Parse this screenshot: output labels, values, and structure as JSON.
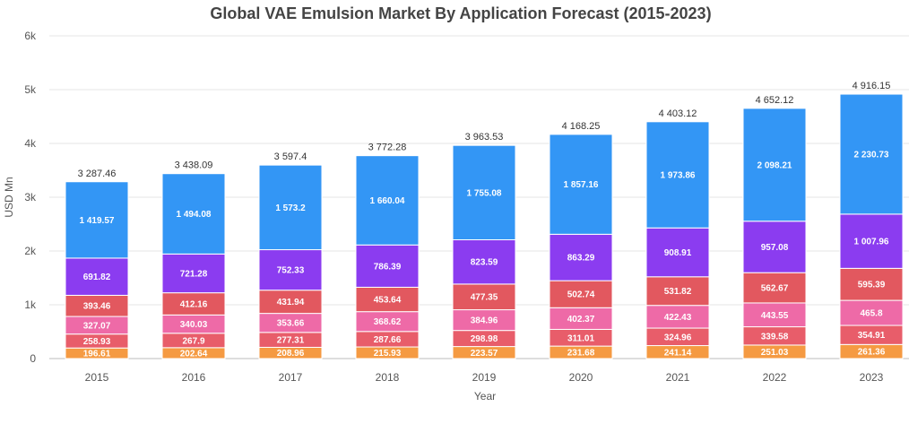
{
  "chart_data": {
    "type": "bar",
    "stacked": true,
    "title": "Global VAE Emulsion Market By Application Forecast (2015-2023)",
    "xlabel": "Year",
    "ylabel": "USD Mn",
    "ylim": [
      0,
      6000
    ],
    "yticks": [
      0,
      1000,
      2000,
      3000,
      4000,
      5000,
      6000
    ],
    "ytick_labels": [
      "0",
      "1k",
      "2k",
      "3k",
      "4k",
      "5k",
      "6k"
    ],
    "grid": true,
    "categories": [
      "2015",
      "2016",
      "2017",
      "2018",
      "2019",
      "2020",
      "2021",
      "2022",
      "2023"
    ],
    "series": [
      {
        "color": "#f59a42",
        "values": [
          196.61,
          202.64,
          208.96,
          215.93,
          223.57,
          231.68,
          241.14,
          251.03,
          261.36
        ],
        "labels": [
          "196.61",
          "202.64",
          "208.96",
          "215.93",
          "223.57",
          "231.68",
          "241.14",
          "251.03",
          "261.36"
        ]
      },
      {
        "color": "#e85d6a",
        "values": [
          258.93,
          267.9,
          277.31,
          287.66,
          298.98,
          311.01,
          324.96,
          339.58,
          354.91
        ],
        "labels": [
          "258.93",
          "267.9",
          "277.31",
          "287.66",
          "298.98",
          "311.01",
          "324.96",
          "339.58",
          "354.91"
        ]
      },
      {
        "color": "#ee6aa7",
        "values": [
          327.07,
          340.03,
          353.66,
          368.62,
          384.96,
          402.37,
          422.43,
          443.55,
          465.8
        ],
        "labels": [
          "327.07",
          "340.03",
          "353.66",
          "368.62",
          "384.96",
          "402.37",
          "422.43",
          "443.55",
          "465.8"
        ]
      },
      {
        "color": "#e2585f",
        "values": [
          393.46,
          412.16,
          431.94,
          453.64,
          477.35,
          502.74,
          531.82,
          562.67,
          595.39
        ],
        "labels": [
          "393.46",
          "412.16",
          "431.94",
          "453.64",
          "477.35",
          "502.74",
          "531.82",
          "562.67",
          "595.39"
        ]
      },
      {
        "color": "#8b3cf0",
        "values": [
          691.82,
          721.28,
          752.33,
          786.39,
          823.59,
          863.29,
          908.91,
          957.08,
          1007.96
        ],
        "labels": [
          "691.82",
          "721.28",
          "752.33",
          "786.39",
          "823.59",
          "863.29",
          "908.91",
          "957.08",
          "1 007.96"
        ]
      },
      {
        "color": "#3396f5",
        "values": [
          1419.57,
          1494.08,
          1573.2,
          1660.04,
          1755.08,
          1857.16,
          1973.86,
          2098.21,
          2230.73
        ],
        "labels": [
          "1 419.57",
          "1 494.08",
          "1 573.2",
          "1 660.04",
          "1 755.08",
          "1 857.16",
          "1 973.86",
          "2 098.21",
          "2 230.73"
        ]
      }
    ],
    "totals": [
      3287.46,
      3438.09,
      3597.4,
      3772.28,
      3963.53,
      4168.25,
      4403.12,
      4652.12,
      4916.15
    ],
    "total_labels": [
      "3 287.46",
      "3 438.09",
      "3 597.4",
      "3 772.28",
      "3 963.53",
      "4 168.25",
      "4 403.12",
      "4 652.12",
      "4 916.15"
    ]
  }
}
